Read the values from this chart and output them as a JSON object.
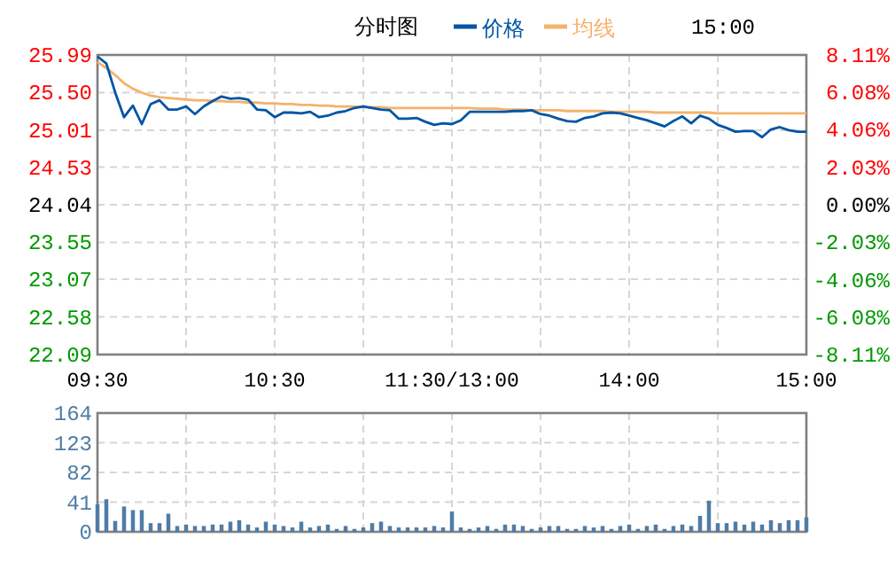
{
  "chart_data": [
    {
      "type": "line",
      "annotations": [
        "分时图",
        "15:00"
      ],
      "legend": "top",
      "grid": true,
      "categories": [
        "09:30",
        null,
        null,
        null,
        null,
        null,
        null,
        null,
        null,
        null,
        null,
        null,
        null,
        null,
        null,
        null,
        null,
        null,
        null,
        null,
        "10:30",
        null,
        null,
        null,
        null,
        null,
        null,
        null,
        null,
        null,
        null,
        null,
        null,
        null,
        null,
        null,
        null,
        null,
        null,
        null,
        "11:30/13:00",
        null,
        null,
        null,
        null,
        null,
        null,
        null,
        null,
        null,
        null,
        null,
        null,
        null,
        null,
        null,
        null,
        null,
        null,
        null,
        "14:00",
        null,
        null,
        null,
        null,
        null,
        null,
        null,
        null,
        null,
        null,
        null,
        null,
        null,
        null,
        null,
        null,
        null,
        null,
        null,
        "15:00"
      ],
      "ylim": [
        22.09,
        25.99
      ],
      "yticks": [
        {
          "value": 25.99,
          "label": "25.99"
        },
        {
          "value": 25.5,
          "label": "25.50"
        },
        {
          "value": 25.01,
          "label": "25.01"
        },
        {
          "value": 24.53,
          "label": "24.53"
        },
        {
          "value": 24.04,
          "label": "24.04"
        },
        {
          "value": 23.55,
          "label": "23.55"
        },
        {
          "value": 23.07,
          "label": "23.07"
        },
        {
          "value": 22.58,
          "label": "22.58"
        },
        {
          "value": 22.09,
          "label": "22.09"
        }
      ],
      "y2lim": [
        -8.11,
        8.11
      ],
      "y2ticks": [
        {
          "value": 8.11,
          "label": "8.11%"
        },
        {
          "value": 6.08,
          "label": "6.08%"
        },
        {
          "value": 4.06,
          "label": "4.06%"
        },
        {
          "value": 2.03,
          "label": "2.03%"
        },
        {
          "value": 0,
          "label": "0.00%"
        },
        {
          "value": -2.03,
          "label": "-2.03%"
        },
        {
          "value": -4.06,
          "label": "-4.06%"
        },
        {
          "value": -6.08,
          "label": "-6.08%"
        },
        {
          "value": -8.11,
          "label": "-8.11%"
        }
      ],
      "series": [
        {
          "name": "价格",
          "color": "#0055a5",
          "values": [
            25.97,
            25.88,
            25.5,
            25.18,
            25.33,
            25.09,
            25.35,
            25.4,
            25.28,
            25.28,
            25.32,
            25.22,
            25.32,
            25.39,
            25.45,
            25.42,
            25.43,
            25.41,
            25.28,
            25.27,
            25.18,
            25.24,
            25.24,
            25.23,
            25.25,
            25.18,
            25.2,
            25.24,
            25.26,
            25.3,
            25.32,
            25.3,
            25.28,
            25.27,
            25.16,
            25.16,
            25.17,
            25.12,
            25.08,
            25.1,
            25.09,
            25.14,
            25.25,
            25.25,
            25.25,
            25.25,
            25.25,
            25.26,
            25.26,
            25.27,
            25.22,
            25.2,
            25.16,
            25.13,
            25.12,
            25.17,
            25.19,
            25.23,
            25.24,
            25.23,
            25.2,
            25.17,
            25.14,
            25.1,
            25.06,
            25.13,
            25.19,
            25.1,
            25.2,
            25.16,
            25.08,
            25.04,
            24.99,
            25.0,
            25.0,
            24.92,
            25.02,
            25.05,
            25.01,
            24.99,
            24.99
          ]
        },
        {
          "name": "均线",
          "color": "#f5b26b",
          "values": [
            25.9,
            25.82,
            25.73,
            25.62,
            25.55,
            25.5,
            25.46,
            25.44,
            25.43,
            25.42,
            25.41,
            25.4,
            25.4,
            25.39,
            25.39,
            25.38,
            25.38,
            25.37,
            25.37,
            25.36,
            25.36,
            25.35,
            25.35,
            25.34,
            25.34,
            25.33,
            25.33,
            25.32,
            25.32,
            25.32,
            25.31,
            25.31,
            25.31,
            25.3,
            25.3,
            25.3,
            25.3,
            25.3,
            25.3,
            25.3,
            25.3,
            25.3,
            25.3,
            25.29,
            25.29,
            25.29,
            25.28,
            25.28,
            25.28,
            25.27,
            25.27,
            25.27,
            25.27,
            25.26,
            25.26,
            25.26,
            25.26,
            25.26,
            25.25,
            25.25,
            25.25,
            25.25,
            25.25,
            25.24,
            25.24,
            25.24,
            25.24,
            25.24,
            25.24,
            25.24,
            25.23,
            25.23,
            25.23,
            25.23,
            25.23,
            25.23,
            25.23,
            25.23,
            25.23,
            25.23,
            25.23
          ]
        }
      ]
    },
    {
      "type": "bar",
      "grid": true,
      "tick_labels": "y",
      "categories": [
        null,
        null,
        null,
        null,
        null,
        null,
        null,
        null,
        null,
        null,
        null,
        null,
        null,
        null,
        null,
        null,
        null,
        null,
        null,
        null,
        null,
        null,
        null,
        null,
        null,
        null,
        null,
        null,
        null,
        null,
        null,
        null,
        null,
        null,
        null,
        null,
        null,
        null,
        null,
        null,
        null,
        null,
        null,
        null,
        null,
        null,
        null,
        null,
        null,
        null,
        null,
        null,
        null,
        null,
        null,
        null,
        null,
        null,
        null,
        null,
        null,
        null,
        null,
        null,
        null,
        null,
        null,
        null,
        null,
        null,
        null,
        null,
        null,
        null,
        null,
        null,
        null,
        null,
        null,
        null,
        null
      ],
      "ylim": [
        0,
        164
      ],
      "yticks": [
        0,
        41,
        82,
        123,
        164
      ],
      "series": [
        {
          "color": "#4f7ca6",
          "values": [
            38,
            45,
            15,
            35,
            30,
            30,
            12,
            12,
            25,
            8,
            10,
            8,
            8,
            10,
            10,
            14,
            16,
            10,
            6,
            14,
            10,
            8,
            6,
            14,
            6,
            8,
            10,
            4,
            8,
            4,
            6,
            12,
            14,
            8,
            6,
            6,
            6,
            6,
            8,
            6,
            28,
            6,
            4,
            6,
            8,
            4,
            10,
            10,
            8,
            4,
            6,
            8,
            8,
            4,
            4,
            8,
            6,
            8,
            4,
            8,
            10,
            4,
            8,
            10,
            4,
            8,
            10,
            8,
            22,
            43,
            12,
            12,
            14,
            10,
            14,
            10,
            16,
            12,
            16,
            16,
            20
          ]
        }
      ]
    }
  ]
}
